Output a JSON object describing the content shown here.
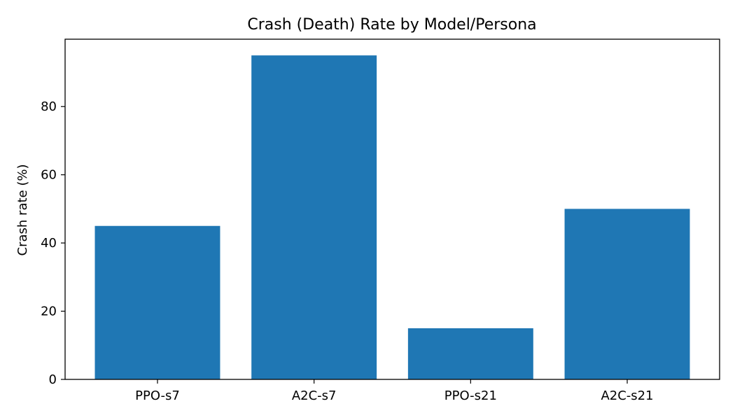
{
  "chart_data": {
    "type": "bar",
    "title": "Crash (Death) Rate by Model/Persona",
    "xlabel": "",
    "ylabel": "Crash rate (%)",
    "categories": [
      "PPO-s7",
      "A2C-s7",
      "PPO-s21",
      "A2C-s21"
    ],
    "values": [
      45,
      95,
      15,
      50
    ],
    "ylim": [
      0,
      99.75
    ],
    "yticks": [
      0,
      20,
      40,
      60,
      80
    ],
    "bar_color": "#1f77b4",
    "grid": false,
    "legend": "none"
  }
}
